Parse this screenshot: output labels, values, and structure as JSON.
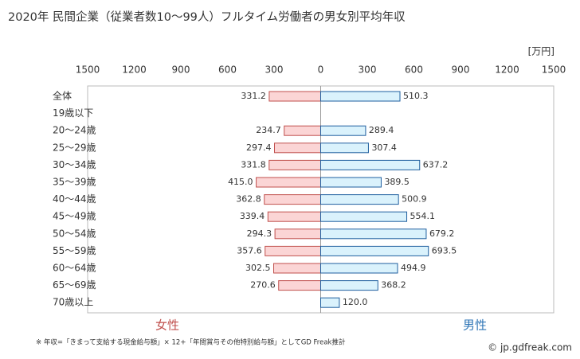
{
  "chart_data": {
    "type": "butterfly",
    "title": "2020年 民間企業（従業者数10～99人）フルタイム労働者の男女別平均年収",
    "unit_label": "[万円]",
    "categories": [
      "全体",
      "19歳以下",
      "20～24歳",
      "25～29歳",
      "30～34歳",
      "35～39歳",
      "40～44歳",
      "45～49歳",
      "50～54歳",
      "55～59歳",
      "60～64歳",
      "65～69歳",
      "70歳以上"
    ],
    "series": [
      {
        "name": "女性",
        "side": "left",
        "color": "#fbd5d5",
        "edgecolor": "#c0504d",
        "namecolor": "#c0504d",
        "values": [
          331.2,
          null,
          234.7,
          297.4,
          331.8,
          415.0,
          362.8,
          339.4,
          294.3,
          357.6,
          302.5,
          270.6,
          null
        ],
        "value_labels": [
          "331.2",
          null,
          "234.7",
          "297.4",
          "331.8",
          "415.0",
          "362.8",
          "339.4",
          "294.3",
          "357.6",
          "302.5",
          "270.6",
          null
        ]
      },
      {
        "name": "男性",
        "side": "right",
        "color": "#daf2fc",
        "edgecolor": "#1f5f9f",
        "namecolor": "#2e75b6",
        "values": [
          510.3,
          null,
          289.4,
          307.4,
          637.2,
          389.5,
          500.9,
          554.1,
          679.2,
          693.5,
          494.9,
          368.2,
          120.0
        ],
        "value_labels": [
          "510.3",
          null,
          "289.4",
          "307.4",
          "637.2",
          "389.5",
          "500.9",
          "554.1",
          "679.2",
          "693.5",
          "494.9",
          "368.2",
          "120.0"
        ]
      }
    ],
    "xlim": [
      0,
      1500
    ],
    "xticks": [
      0,
      300,
      600,
      900,
      1200,
      1500
    ],
    "footnote": "※ 年収=「きまって支給する現金給与額」× 12+「年間賞与その他特別給与額」としてGD Freak推計",
    "credit": "© jp.gdfreak.com"
  }
}
